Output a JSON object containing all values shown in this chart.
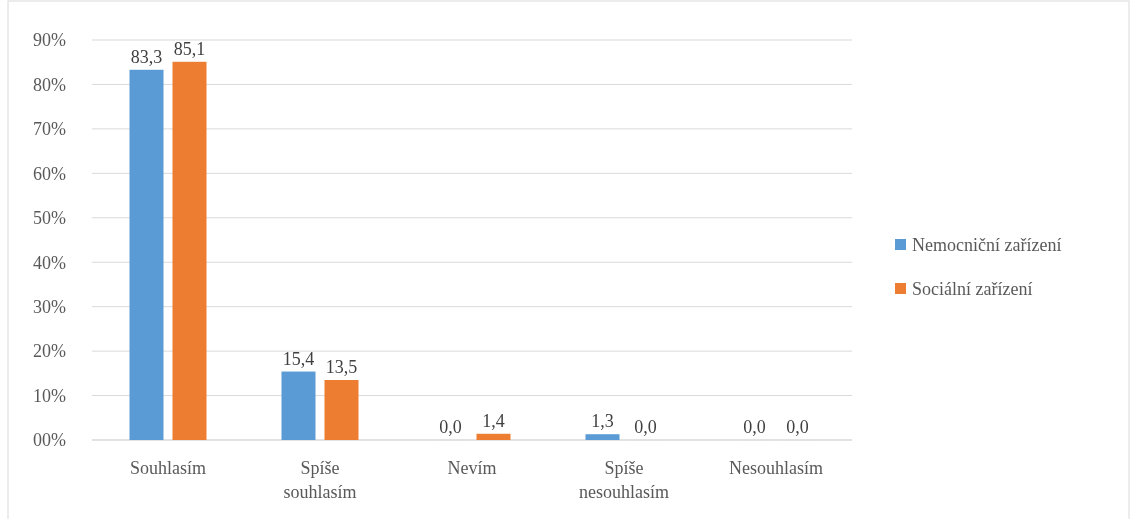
{
  "chart_data": {
    "type": "bar",
    "categories": [
      "Souhlasím",
      "Spíše souhlasím",
      "Nevím",
      "Spíše nesouhlasím",
      "Nesouhlasím"
    ],
    "series": [
      {
        "name": "Nemocniční zařízení",
        "color": "#5b9bd5",
        "values": [
          83.3,
          15.4,
          0,
          1.3,
          0
        ],
        "value_labels": [
          "83,3",
          "15,4",
          "0,0",
          "1,3",
          "0,0"
        ]
      },
      {
        "name": "Sociální zařízení",
        "color": "#ed7d31",
        "values": [
          85.1,
          13.5,
          1.4,
          0,
          0
        ],
        "value_labels": [
          "85,1",
          "13,5",
          "1,4",
          "0,0",
          "0,0"
        ]
      }
    ],
    "ylim": [
      0,
      90
    ],
    "yticks": [
      {
        "value": 0,
        "label": "00%"
      },
      {
        "value": 10,
        "label": "10%"
      },
      {
        "value": 20,
        "label": "20%"
      },
      {
        "value": 30,
        "label": "30%"
      },
      {
        "value": 40,
        "label": "40%"
      },
      {
        "value": 50,
        "label": "50%"
      },
      {
        "value": 60,
        "label": "60%"
      },
      {
        "value": 70,
        "label": "70%"
      },
      {
        "value": 80,
        "label": "80%"
      },
      {
        "value": 90,
        "label": "90%"
      }
    ],
    "grid": "y",
    "legend": "right"
  }
}
